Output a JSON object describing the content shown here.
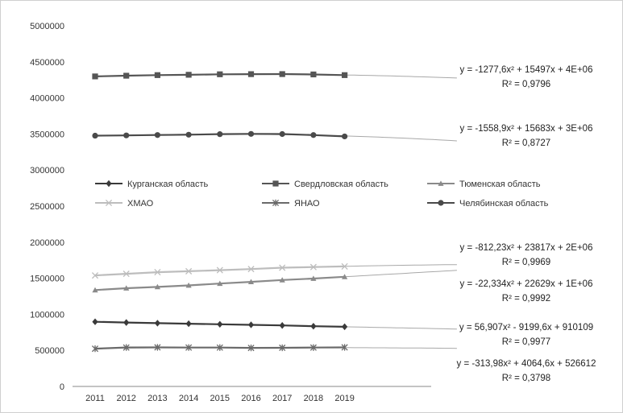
{
  "chart_data": {
    "type": "line",
    "title": "",
    "xlabel": "",
    "ylabel": "",
    "x": [
      "2011",
      "2012",
      "2013",
      "2014",
      "2015",
      "2016",
      "2017",
      "2018",
      "2019"
    ],
    "ylim": [
      0,
      5000000
    ],
    "yticks": [
      "0",
      "500000",
      "1000000",
      "1500000",
      "2000000",
      "2500000",
      "3000000",
      "3500000",
      "4000000",
      "4500000",
      "5000000"
    ],
    "grid": false,
    "legend_position": "middle",
    "series": [
      {
        "name": "Курганская область",
        "marker": "diamond",
        "color": "#3a3a3a",
        "values": [
          896264,
          885758,
          876844,
          869833,
          861896,
          854109,
          845537,
          834701,
          827166
        ]
      },
      {
        "name": "Свердловская область",
        "marker": "square",
        "color": "#555555",
        "values": [
          4297897,
          4307594,
          4315830,
          4320677,
          4327472,
          4329341,
          4330006,
          4325256,
          4315699
        ]
      },
      {
        "name": "Тюменская область",
        "marker": "triangle",
        "color": "#8a8a8a",
        "values": [
          1335800,
          1361700,
          1379400,
          1401100,
          1426000,
          1450000,
          1475000,
          1496000,
          1520000
        ]
      },
      {
        "name": "ХМАО",
        "marker": "x",
        "color": "#bdbdbd",
        "values": [
          1538600,
          1561238,
          1584059,
          1597222,
          1612076,
          1626755,
          1646078,
          1655074,
          1663795
        ]
      },
      {
        "name": "ЯНАО",
        "marker": "asterisk",
        "color": "#6a6a6a",
        "values": [
          522904,
          539671,
          541479,
          539129,
          538512,
          534104,
          536049,
          538547,
          541479
        ]
      },
      {
        "name": "Челябинская область",
        "marker": "circle",
        "color": "#4a4a4a",
        "values": [
          3476217,
          3480097,
          3485272,
          3490053,
          3497274,
          3500716,
          3498774,
          3484874,
          3466369
        ]
      }
    ],
    "annotations": [
      {
        "line1": "y = -1277,6x² + 15497x + 4E+06",
        "line2": "R² = 0,9796"
      },
      {
        "line1": "y = -1558,9x² + 15683x + 3E+06",
        "line2": "R² = 0,8727"
      },
      {
        "line1": "y = -812,23x² + 23817x + 2E+06",
        "line2": "R² = 0,9969"
      },
      {
        "line1": "y = -22,334x² + 22629x + 1E+06",
        "line2": "R² = 0,9992"
      },
      {
        "line1": "y = 56,907x² - 9199,6x + 910109",
        "line2": "R² = 0,9977"
      },
      {
        "line1": "y = -313,98x² + 4064,6x + 526612",
        "line2": "R² = 0,3798"
      }
    ]
  }
}
